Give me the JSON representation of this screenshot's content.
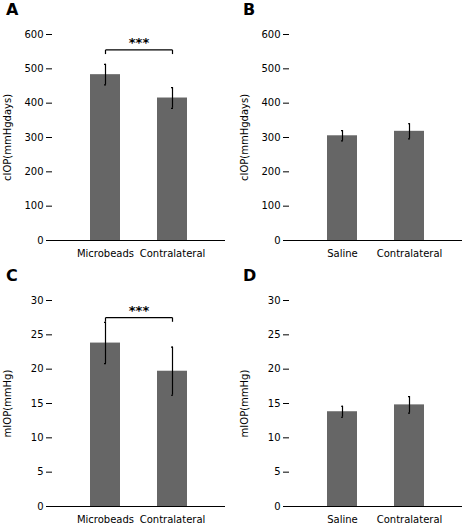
{
  "chart_data": [
    {
      "type": "bar",
      "title": "A",
      "categories": [
        "Microbeads",
        "Contralateral"
      ],
      "values": [
        483,
        415
      ],
      "errors": [
        30,
        30
      ],
      "color": "#666666",
      "y_label": "cIOP(mmHgdays)",
      "ylim": [
        0,
        600
      ],
      "yticks": [
        0,
        100,
        200,
        300,
        400,
        500,
        600
      ],
      "annotations": [
        {
          "text": "***",
          "y": 555,
          "from": "Microbeads",
          "to": "Contralateral"
        }
      ]
    },
    {
      "type": "bar",
      "title": "B",
      "categories": [
        "Saline",
        "Contralateral"
      ],
      "values": [
        305,
        318
      ],
      "errors": [
        15,
        22
      ],
      "color": "#666666",
      "y_label": "cIOP(mmHgdays)",
      "ylim": [
        0,
        600
      ],
      "yticks": [
        0,
        100,
        200,
        300,
        400,
        500,
        600
      ]
    },
    {
      "type": "bar",
      "title": "C",
      "categories": [
        "Microbeads",
        "Contralateral"
      ],
      "values": [
        23.8,
        19.7
      ],
      "errors": [
        3.0,
        3.5
      ],
      "color": "#666666",
      "y_label": "mIOP(mmHg)",
      "ylim": [
        0,
        30
      ],
      "yticks": [
        0,
        5,
        10,
        15,
        20,
        25,
        30
      ],
      "annotations": [
        {
          "text": "***",
          "y": 27.5,
          "from": "Microbeads",
          "to": "Contralateral"
        }
      ]
    },
    {
      "type": "bar",
      "title": "D",
      "categories": [
        "Saline",
        "Contralateral"
      ],
      "values": [
        13.8,
        14.8
      ],
      "errors": [
        0.8,
        1.2
      ],
      "color": "#666666",
      "y_label": "mIOP(mmHg)",
      "ylim": [
        0,
        30
      ],
      "yticks": [
        0,
        5,
        10,
        15,
        20,
        25,
        30
      ]
    }
  ]
}
